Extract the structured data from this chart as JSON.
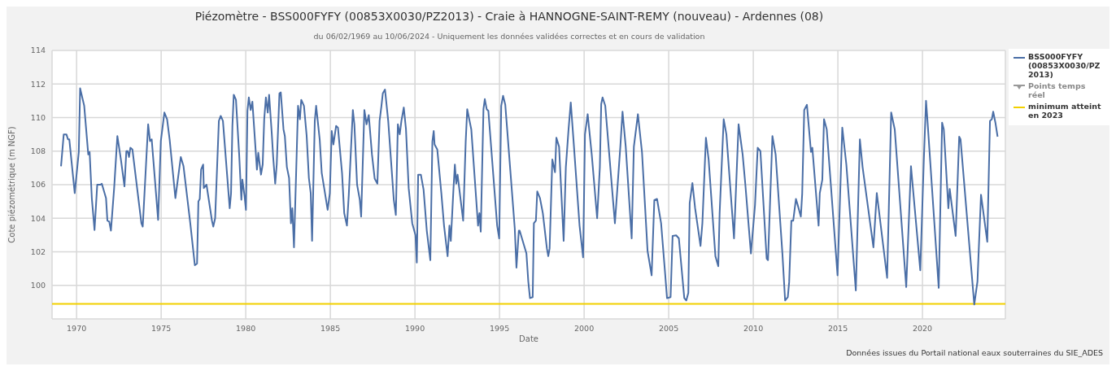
{
  "chart_data": {
    "type": "line",
    "title": "Piézomètre - BSS000FYFY (00853X0030/PZ2013) - Craie à HANNOGNE-SAINT-REMY (nouveau) - Ardennes (08)",
    "subtitle": "du 06/02/1969 au 10/06/2024 - Uniquement les données validées correctes et en cours de validation",
    "xlabel": "Date",
    "ylabel": "Cote piézométrique (m NGF)",
    "annotations": [
      "Données issues du Portail national eaux souterraines du SIE_ADES"
    ],
    "xlim": [
      1968.55,
      2024.9
    ],
    "xticks": [
      1970,
      1975,
      1980,
      1985,
      1990,
      1995,
      2000,
      2005,
      2010,
      2015,
      2020
    ],
    "ylim": [
      98,
      114
    ],
    "yticks": [
      100,
      102,
      104,
      106,
      108,
      110,
      112,
      114
    ],
    "grid": true,
    "legend": "top right",
    "marker": "none",
    "line_style": "solid",
    "series": [
      {
        "name": "BSS000FYFY (00853X0030/PZ2013)",
        "color": "#4a6ea6",
        "x": [
          1969.08,
          1969.24,
          1969.4,
          1969.49,
          1969.57,
          1969.89,
          1970.13,
          1970.21,
          1970.45,
          1970.69,
          1970.77,
          1970.9,
          1971.06,
          1971.22,
          1971.41,
          1971.49,
          1971.74,
          1971.82,
          1971.93,
          1972.03,
          1972.22,
          1972.41,
          1972.62,
          1972.83,
          1972.94,
          1973.02,
          1973.1,
          1973.18,
          1973.3,
          1973.83,
          1973.91,
          1974.23,
          1974.34,
          1974.44,
          1974.82,
          1974.98,
          1975.19,
          1975.35,
          1975.5,
          1975.84,
          1976.16,
          1976.32,
          1976.72,
          1976.99,
          1977.12,
          1977.2,
          1977.28,
          1977.36,
          1977.48,
          1977.52,
          1977.68,
          1978.0,
          1978.08,
          1978.19,
          1978.41,
          1978.52,
          1978.65,
          1979.05,
          1979.13,
          1979.21,
          1979.29,
          1979.42,
          1979.61,
          1979.74,
          1979.8,
          1979.93,
          1980.01,
          1980.1,
          1980.18,
          1980.29,
          1980.39,
          1980.58,
          1980.66,
          1980.74,
          1980.9,
          1981.0,
          1981.09,
          1981.19,
          1981.3,
          1981.38,
          1981.54,
          1981.62,
          1981.74,
          1981.83,
          1981.99,
          1982.07,
          1982.23,
          1982.31,
          1982.43,
          1982.56,
          1982.67,
          1982.75,
          1982.85,
          1982.96,
          1983.09,
          1983.2,
          1983.28,
          1983.44,
          1983.6,
          1983.73,
          1983.84,
          1983.92,
          1984.08,
          1984.16,
          1984.37,
          1984.49,
          1984.65,
          1984.84,
          1984.97,
          1985.08,
          1985.18,
          1985.34,
          1985.45,
          1985.69,
          1985.82,
          1985.98,
          1986.09,
          1986.33,
          1986.42,
          1986.58,
          1986.74,
          1986.82,
          1987.01,
          1987.14,
          1987.27,
          1987.46,
          1987.62,
          1987.78,
          1987.91,
          1988.02,
          1988.1,
          1988.23,
          1988.42,
          1988.75,
          1988.87,
          1988.99,
          1989.1,
          1989.2,
          1989.34,
          1989.47,
          1989.63,
          1989.84,
          1990.03,
          1990.11,
          1990.19,
          1990.35,
          1990.51,
          1990.7,
          1990.91,
          1991.03,
          1991.11,
          1991.16,
          1991.32,
          1991.56,
          1991.72,
          1991.93,
          1992.04,
          1992.12,
          1992.28,
          1992.36,
          1992.44,
          1992.52,
          1992.85,
          1993.0,
          1993.09,
          1993.33,
          1993.73,
          1993.81,
          1993.89,
          1994.05,
          1994.13,
          1994.24,
          1994.34,
          1994.86,
          1994.98,
          1995.1,
          1995.21,
          1995.34,
          1995.9,
          1996.0,
          1996.14,
          1996.19,
          1996.59,
          1996.7,
          1996.8,
          1996.96,
          1997.03,
          1997.15,
          1997.23,
          1997.39,
          1997.56,
          1997.8,
          1997.88,
          1997.96,
          1998.12,
          1998.28,
          1998.36,
          1998.52,
          1998.79,
          1998.92,
          1999.08,
          1999.21,
          1999.4,
          1999.73,
          1999.94,
          2000.05,
          2000.21,
          2000.45,
          2000.77,
          2000.93,
          2001.01,
          2001.09,
          2001.25,
          2001.82,
          2002.14,
          2002.27,
          2002.46,
          2002.81,
          2002.94,
          2003.18,
          2003.42,
          2003.75,
          2003.99,
          2004.15,
          2004.31,
          2004.55,
          2004.79,
          2004.9,
          2005.11,
          2005.23,
          2005.44,
          2005.6,
          2005.92,
          2006.04,
          2006.16,
          2006.24,
          2006.4,
          2006.56,
          2006.88,
          2006.99,
          2007.2,
          2007.36,
          2007.76,
          2007.93,
          2008.01,
          2008.25,
          2008.41,
          2008.86,
          2009.13,
          2009.37,
          2009.53,
          2009.86,
          2010.1,
          2010.26,
          2010.42,
          2010.79,
          2010.87,
          2011.13,
          2011.32,
          2011.72,
          2011.88,
          2012.04,
          2012.12,
          2012.25,
          2012.36,
          2012.52,
          2012.63,
          2012.81,
          2012.89,
          2013.01,
          2013.17,
          2013.41,
          2013.49,
          2013.86,
          2013.93,
          2014.08,
          2014.18,
          2014.34,
          2014.98,
          2015.26,
          2015.5,
          2016.06,
          2016.3,
          2016.46,
          2017.1,
          2017.3,
          2017.91,
          2018.15,
          2018.36,
          2019.04,
          2019.32,
          2019.87,
          2020.08,
          2020.21,
          2020.29,
          2020.96,
          2021.16,
          2021.26,
          2021.53,
          2021.61,
          2021.96,
          2022.17,
          2022.25,
          2023.06,
          2023.25,
          2023.46,
          2023.83,
          2023.99,
          2024.1,
          2024.18,
          2024.31,
          2024.44
        ],
        "values": [
          107.1,
          109.0,
          109.0,
          108.7,
          108.7,
          105.5,
          107.95,
          111.74,
          110.7,
          107.8,
          107.95,
          105.2,
          103.3,
          106.0,
          106.0,
          106.06,
          105.2,
          103.86,
          103.8,
          103.26,
          105.8,
          108.9,
          107.5,
          105.9,
          108.0,
          108.0,
          107.65,
          108.2,
          108.1,
          103.7,
          103.5,
          109.6,
          108.6,
          108.7,
          103.9,
          108.6,
          110.3,
          109.9,
          108.7,
          105.2,
          107.65,
          107.1,
          103.7,
          101.2,
          101.3,
          105.0,
          105.15,
          106.9,
          107.2,
          105.8,
          106.0,
          103.86,
          103.5,
          104.0,
          109.8,
          110.1,
          109.8,
          104.6,
          105.5,
          109.5,
          111.36,
          111.06,
          107.8,
          105.1,
          106.3,
          105.3,
          104.5,
          110.4,
          111.2,
          110.45,
          110.95,
          108.1,
          106.9,
          107.9,
          106.6,
          107.2,
          109.9,
          111.2,
          110.3,
          111.36,
          109.0,
          107.65,
          106.06,
          107.2,
          111.44,
          111.5,
          109.3,
          108.9,
          107.05,
          106.4,
          103.7,
          104.6,
          102.27,
          106.1,
          110.7,
          109.9,
          111.06,
          110.7,
          108.9,
          106.4,
          105.5,
          102.65,
          109.8,
          110.7,
          108.7,
          106.7,
          105.7,
          104.5,
          105.5,
          109.2,
          108.4,
          109.5,
          109.4,
          106.7,
          104.3,
          103.56,
          105.4,
          110.45,
          109.6,
          106.0,
          105.1,
          104.1,
          110.45,
          109.6,
          110.15,
          107.8,
          106.36,
          106.06,
          109.8,
          110.7,
          111.44,
          111.67,
          109.8,
          105.1,
          104.2,
          109.6,
          109.0,
          109.8,
          110.6,
          109.3,
          105.8,
          103.7,
          103.0,
          101.36,
          106.6,
          106.6,
          105.7,
          103.26,
          101.5,
          108.56,
          109.2,
          108.4,
          108.1,
          105.5,
          103.56,
          101.74,
          103.56,
          102.65,
          105.8,
          107.2,
          106.06,
          106.6,
          103.86,
          108.56,
          110.5,
          109.3,
          103.56,
          104.3,
          103.2,
          110.5,
          111.1,
          110.5,
          110.4,
          103.56,
          102.8,
          110.7,
          111.3,
          110.76,
          103.4,
          101.06,
          103.26,
          103.26,
          101.9,
          100.23,
          99.24,
          99.3,
          103.7,
          103.86,
          105.6,
          105.2,
          104.3,
          102.2,
          101.74,
          102.2,
          107.5,
          106.74,
          108.8,
          108.26,
          102.65,
          107.05,
          109.3,
          110.9,
          108.26,
          103.56,
          101.67,
          109.0,
          110.2,
          107.8,
          104.0,
          107.05,
          110.8,
          111.2,
          110.7,
          103.7,
          108.26,
          110.35,
          108.26,
          102.8,
          108.26,
          110.2,
          107.95,
          102.05,
          100.6,
          105.08,
          105.15,
          103.7,
          100.68,
          99.24,
          99.3,
          102.95,
          102.98,
          102.8,
          99.24,
          99.1,
          99.55,
          104.9,
          106.1,
          104.6,
          102.35,
          103.7,
          108.8,
          107.5,
          101.74,
          101.14,
          104.3,
          109.9,
          109.0,
          102.8,
          109.6,
          107.8,
          106.0,
          101.9,
          104.77,
          108.2,
          108.0,
          101.6,
          101.5,
          108.9,
          107.8,
          101.9,
          99.1,
          99.3,
          100.2,
          103.86,
          103.86,
          105.15,
          104.77,
          104.1,
          105.45,
          110.45,
          110.76,
          107.95,
          108.2,
          103.56,
          105.5,
          106.3,
          109.9,
          109.3,
          100.6,
          109.4,
          107.2,
          99.7,
          108.7,
          107.05,
          102.27,
          105.5,
          100.45,
          110.3,
          109.3,
          99.9,
          107.1,
          100.9,
          107.5,
          111.0,
          109.9,
          99.85,
          109.7,
          109.3,
          104.6,
          105.75,
          102.95,
          108.86,
          108.7,
          98.86,
          100.23,
          105.4,
          102.6,
          109.8,
          109.9,
          110.35,
          109.7,
          108.86
        ]
      },
      {
        "name": "Points temps réel",
        "type": "scatter",
        "color": "#999999"
      }
    ],
    "ref_lines": [
      {
        "axis": "y",
        "value": 98.9,
        "label": "minimum atteint en 2023",
        "color": "#f2d000"
      }
    ]
  }
}
